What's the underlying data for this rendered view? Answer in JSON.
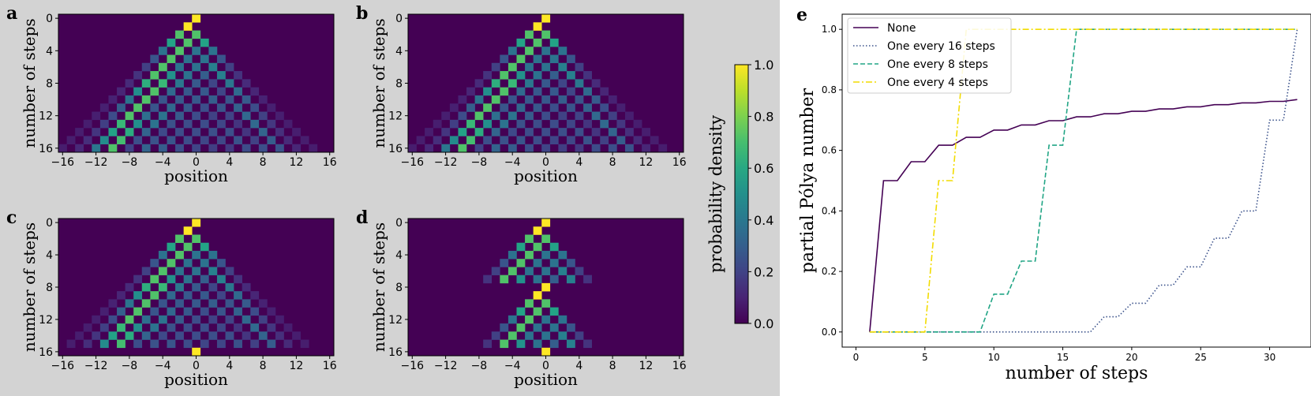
{
  "colors": {
    "left_background": "#d3d3d3",
    "heatmap_background": "#440154",
    "none": "#440154",
    "every16": "#3b528b",
    "every8": "#21a585",
    "every4": "#f2dc00"
  },
  "heatmap_common": {
    "xlabel": "position",
    "ylabel": "number of steps",
    "x_ticks": [
      "−16",
      "−12",
      "−8",
      "−4",
      "0",
      "4",
      "8",
      "12",
      "16"
    ],
    "y_ticks": [
      "0",
      "4",
      "8",
      "12",
      "16"
    ],
    "x_range": [
      -16,
      16
    ],
    "y_range": [
      0,
      16
    ]
  },
  "colorbar": {
    "label": "probability density",
    "ticks": [
      "0.0",
      "0.2",
      "0.4",
      "0.6",
      "0.8",
      "1.0"
    ],
    "range": [
      0,
      1
    ]
  },
  "chart_data": [
    {
      "panel": "a",
      "type": "heatmap",
      "description_key": "free walk",
      "xlabel": "position",
      "ylabel": "number of steps",
      "pattern": "free",
      "reset_period": 0,
      "spread": 13
    },
    {
      "panel": "b",
      "type": "heatmap",
      "xlabel": "position",
      "ylabel": "number of steps",
      "pattern": "free",
      "reset_period": 0,
      "spread": 13
    },
    {
      "panel": "c",
      "type": "heatmap",
      "xlabel": "position",
      "ylabel": "number of steps",
      "pattern": "reset",
      "reset_period": 16,
      "spread": 6
    },
    {
      "panel": "d",
      "type": "heatmap",
      "xlabel": "position",
      "ylabel": "number of steps",
      "pattern": "reset",
      "reset_period": 8,
      "spread": 4
    },
    {
      "panel": "e",
      "type": "line",
      "xlabel": "number of steps",
      "ylabel": "partial Pólya number",
      "xlim": [
        -1,
        33
      ],
      "ylim": [
        -0.05,
        1.05
      ],
      "x_ticks": [
        0,
        5,
        10,
        15,
        20,
        25,
        30
      ],
      "y_ticks": [
        "0.0",
        "0.2",
        "0.4",
        "0.6",
        "0.8",
        "1.0"
      ],
      "legend_position": "top-left",
      "series": [
        {
          "name": "None",
          "style": "solid",
          "x": [
            1,
            2,
            3,
            4,
            5,
            6,
            7,
            8,
            9,
            10,
            11,
            12,
            13,
            14,
            15,
            16,
            17,
            18,
            19,
            20,
            21,
            22,
            23,
            24,
            25,
            26,
            27,
            28,
            29,
            30,
            31,
            32
          ],
          "y": [
            0.0,
            0.5,
            0.5,
            0.5625,
            0.5625,
            0.617,
            0.617,
            0.643,
            0.643,
            0.667,
            0.667,
            0.684,
            0.684,
            0.698,
            0.698,
            0.711,
            0.711,
            0.721,
            0.721,
            0.729,
            0.729,
            0.737,
            0.737,
            0.744,
            0.744,
            0.751,
            0.751,
            0.757,
            0.757,
            0.762,
            0.762,
            0.768
          ]
        },
        {
          "name": "One every 16 steps",
          "style": "dotted",
          "x": [
            1,
            17,
            18,
            19,
            20,
            21,
            22,
            23,
            24,
            25,
            26,
            27,
            28,
            29,
            30,
            31,
            32
          ],
          "y": [
            0.0,
            0.0,
            0.05,
            0.05,
            0.095,
            0.095,
            0.155,
            0.155,
            0.215,
            0.215,
            0.31,
            0.31,
            0.4,
            0.4,
            0.7,
            0.7,
            1.0
          ]
        },
        {
          "name": "One every 8 steps",
          "style": "dashed",
          "x": [
            1,
            9,
            10,
            11,
            12,
            13,
            14,
            15,
            16,
            32
          ],
          "y": [
            0.0,
            0.0,
            0.125,
            0.125,
            0.234,
            0.234,
            0.617,
            0.617,
            1.0,
            1.0
          ]
        },
        {
          "name": "One every 4 steps",
          "style": "dashdot",
          "x": [
            1,
            5,
            6,
            7,
            8,
            32
          ],
          "y": [
            0.0,
            0.0,
            0.5,
            0.5,
            1.0,
            1.0
          ]
        }
      ]
    }
  ]
}
